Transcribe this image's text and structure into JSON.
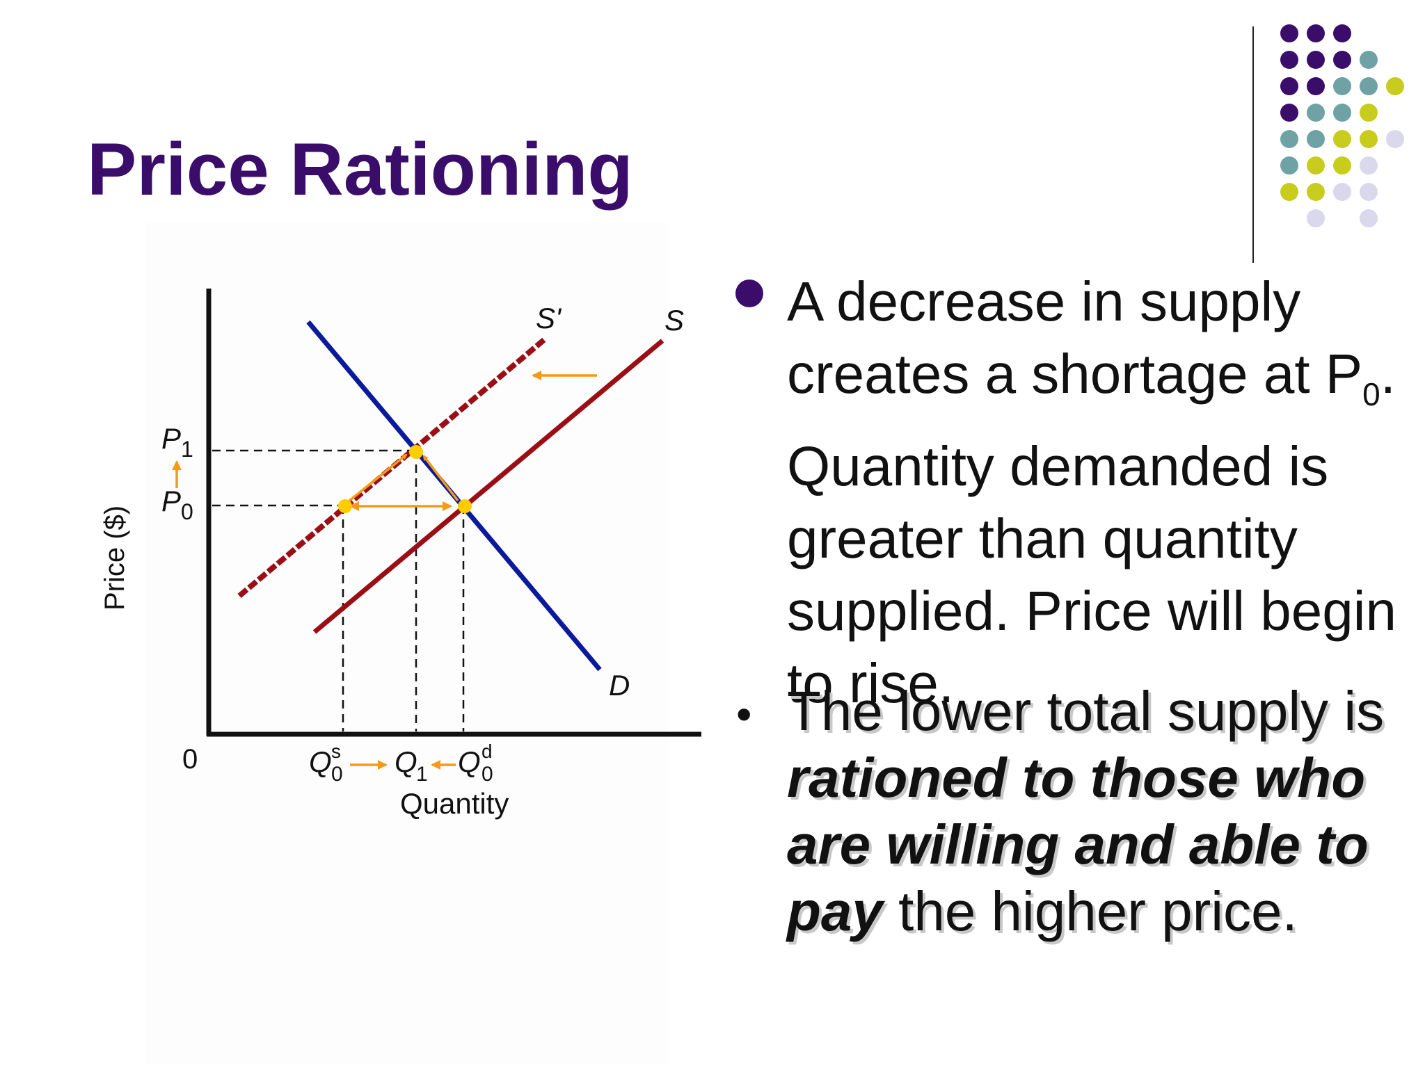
{
  "slide": {
    "title": "Price Rationing"
  },
  "diagram": {
    "y_axis_label": "Price ($)",
    "x_axis_label": "Quantity",
    "origin_label": "0",
    "curves": {
      "supply_new": "S'",
      "supply_original": "S",
      "demand": "D"
    },
    "price_labels": {
      "p1": "P",
      "p1_sub": "1",
      "p0": "P",
      "p0_sub": "0"
    },
    "quantity_labels": {
      "q0s": "Q",
      "q0s_sup": "s",
      "q0s_sub": "0",
      "q1": "Q",
      "q1_sub": "1",
      "q0d": "Q",
      "q0d_sup": "d",
      "q0d_sub": "0"
    },
    "colors": {
      "demand": "#0a1a9a",
      "supply": "#9a0f15",
      "arrow": "#f59a16",
      "point": "#ffcc00"
    }
  },
  "bullets": {
    "first_a": "A decrease in supply creates a shortage at P",
    "first_sub": "0",
    "first_b": ".  Quantity demanded is greater than quantity supplied.  Price will begin to rise.",
    "second_a": "The lower total supply is ",
    "second_em": "rationed to those who are willing and able to pay",
    "second_b": " the higher price."
  },
  "decor": {
    "accent_purple": "#3b0d6b",
    "accent_teal": "#6fa2a4",
    "accent_olive": "#c8cc1c",
    "accent_lavender": "#d9d8ec"
  }
}
